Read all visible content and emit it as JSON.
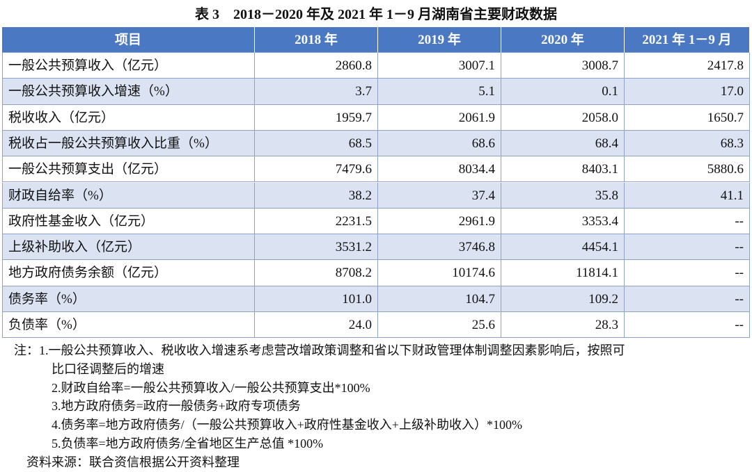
{
  "title": "表 3　2018－2020 年及 2021 年 1－9 月湖南省主要财政数据",
  "table": {
    "header": [
      "项目",
      "2018 年",
      "2019 年",
      "2020 年",
      "2021 年 1－9 月"
    ],
    "rows": [
      [
        "一般公共预算收入（亿元）",
        "2860.8",
        "3007.1",
        "3008.7",
        "2417.8"
      ],
      [
        "一般公共预算收入增速（%）",
        "3.7",
        "5.1",
        "0.1",
        "17.0"
      ],
      [
        "税收收入（亿元）",
        "1959.7",
        "2061.9",
        "2058.0",
        "1650.7"
      ],
      [
        "税收占一般公共预算收入比重（%）",
        "68.5",
        "68.6",
        "68.4",
        "68.3"
      ],
      [
        "一般公共预算支出（亿元）",
        "7479.6",
        "8034.4",
        "8403.1",
        "5880.6"
      ],
      [
        "财政自给率（%）",
        "38.2",
        "37.4",
        "35.8",
        "41.1"
      ],
      [
        "政府性基金收入（亿元）",
        "2231.5",
        "2961.9",
        "3353.4",
        "--"
      ],
      [
        "上级补助收入（亿元）",
        "3531.2",
        "3746.8",
        "4454.1",
        "--"
      ],
      [
        "地方政府债务余额（亿元）",
        "8708.2",
        "10174.6",
        "11814.1",
        "--"
      ],
      [
        "债务率（%）",
        "101.0",
        "104.7",
        "109.2",
        "--"
      ],
      [
        "负债率（%）",
        "24.0",
        "25.6",
        "28.3",
        "--"
      ]
    ]
  },
  "notes": {
    "label": "注：",
    "items": [
      [
        "1.一般公共预算收入、税收收入增速系考虑营改增政策调整和省以下财政管理体制调整因素影响后，按照可",
        "比口径调整后的增速"
      ],
      [
        "2.财政自给率=一般公共预算收入/一般公共预算支出*100%"
      ],
      [
        "3.地方政府债务=政府一般债务+政府专项债务"
      ],
      [
        "4.债务率=地方政府债务/（一般公共预算收入+政府性基金收入+上级补助收入）*100%"
      ],
      [
        "5.负债率=地方政府债务/全省地区生产总值 *100%"
      ]
    ]
  },
  "source": "资料来源：联合资信根据公开资料整理"
}
